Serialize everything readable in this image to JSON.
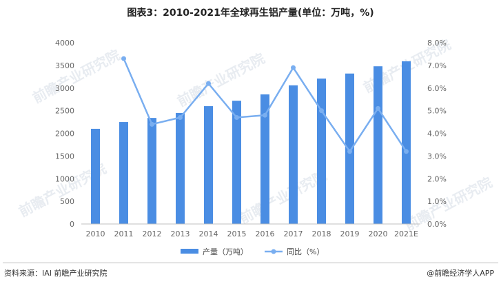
{
  "title": "图表3：2010-2021年全球再生铝产量(单位：万吨，%)",
  "footer": {
    "source": "资料来源：IAI 前瞻产业研究院",
    "brand": "@前瞻经济学人APP"
  },
  "watermark": "前瞻产业研究院",
  "colors": {
    "bar": "#4a8de3",
    "line": "#79aef0",
    "axis": "#bfbfbf"
  },
  "chart_data": {
    "type": "bar+line",
    "categories": [
      "2010",
      "2011",
      "2012",
      "2013",
      "2014",
      "2015",
      "2016",
      "2017",
      "2018",
      "2019",
      "2020",
      "2021E"
    ],
    "series": [
      {
        "name": "产量（万吨）",
        "type": "bar",
        "axis": "left",
        "values": [
          2100,
          2250,
          2340,
          2450,
          2600,
          2720,
          2860,
          3060,
          3210,
          3320,
          3480,
          3590
        ]
      },
      {
        "name": "同比（%）",
        "type": "line",
        "axis": "right",
        "values": [
          null,
          7.3,
          4.4,
          4.7,
          6.2,
          4.7,
          4.8,
          6.9,
          5.0,
          3.2,
          5.1,
          3.2
        ]
      }
    ],
    "y_left": {
      "min": 0,
      "max": 4000,
      "step": 500,
      "ticks": [
        "0",
        "500",
        "1000",
        "1500",
        "2000",
        "2500",
        "3000",
        "3500",
        "4000"
      ]
    },
    "y_right": {
      "min": 0,
      "max": 8,
      "step": 1,
      "ticks": [
        "0.0%",
        "1.0%",
        "2.0%",
        "3.0%",
        "4.0%",
        "5.0%",
        "6.0%",
        "7.0%",
        "8.0%"
      ]
    },
    "legend_position": "bottom-center",
    "grid": false
  }
}
